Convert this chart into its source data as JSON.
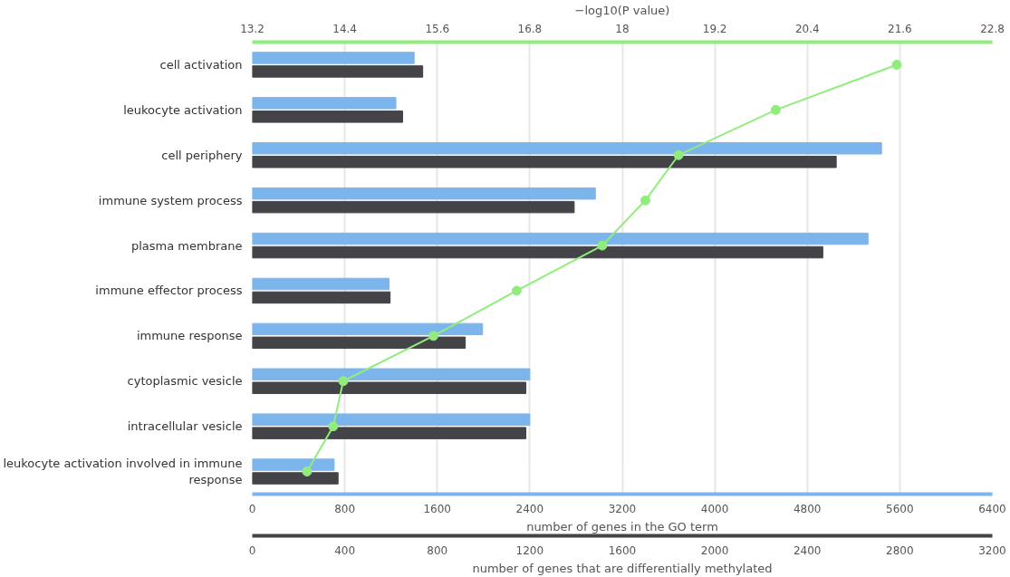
{
  "chart_data": [
    {
      "type": "bar",
      "orientation": "horizontal",
      "categories": [
        "cell activation",
        "leukocyte activation",
        "cell periphery",
        "immune system process",
        "plasma membrane",
        "immune effector process",
        "immune response",
        "cytoplasmic vesicle",
        "intracellular vesicle",
        "leukocyte activation involved in immune response"
      ],
      "series": [
        {
          "color": "#7cb5ec",
          "values": [
            1400,
            1242,
            5442,
            2967,
            5325,
            1183,
            1992,
            2400,
            2400,
            708
          ]
        },
        {
          "type": "line",
          "axis": "x2",
          "color": "#90ed7d",
          "marker": "circle",
          "values": [
            21.56,
            19.99,
            18.73,
            18.3,
            17.74,
            16.63,
            15.55,
            14.38,
            14.25,
            13.91
          ]
        }
      ],
      "xlim": [
        0,
        6400
      ],
      "xticks": [
        0,
        800,
        1600,
        2400,
        3200,
        4000,
        4800,
        5600,
        6400
      ],
      "xlabel": "number of genes in the GO term",
      "x2lim": [
        13.2,
        22.8
      ],
      "x2ticks": [
        13.2,
        14.4,
        15.6,
        16.8,
        18,
        19.2,
        20.4,
        21.6,
        22.8
      ],
      "x2label": "−log10(P value)",
      "grid": "x"
    },
    {
      "type": "bar",
      "orientation": "horizontal",
      "categories": [
        "cell activation",
        "leukocyte activation",
        "cell periphery",
        "immune system process",
        "plasma membrane",
        "immune effector process",
        "immune response",
        "cytoplasmic vesicle",
        "intracellular vesicle",
        "leukocyte activation involved in immune response"
      ],
      "series": [
        {
          "color": "#434348",
          "values": [
            737,
            650,
            2525,
            1392,
            2467,
            596,
            921,
            1183,
            1183,
            371
          ]
        }
      ],
      "xlim": [
        0,
        3200
      ],
      "xticks": [
        0,
        400,
        800,
        1200,
        1600,
        2000,
        2400,
        2800,
        3200
      ],
      "xlabel": "number of genes that are differentially methylated",
      "tick_labels": "x"
    }
  ]
}
